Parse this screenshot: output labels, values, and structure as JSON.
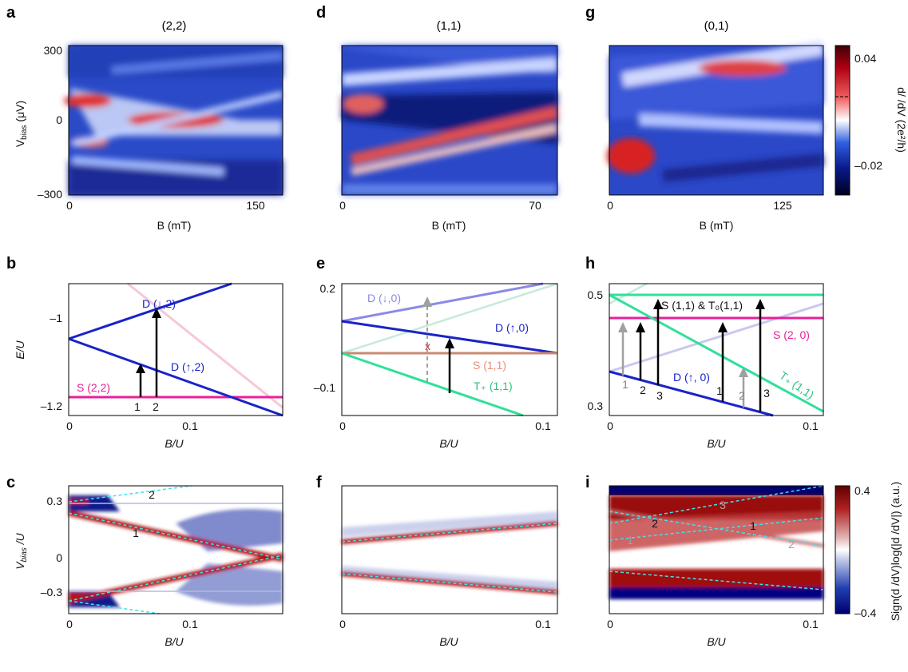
{
  "panel_letters": {
    "a": "a",
    "b": "b",
    "c": "c",
    "d": "d",
    "e": "e",
    "f": "f",
    "g": "g",
    "h": "h",
    "i": "i"
  },
  "titles": {
    "a": "(2,2)",
    "d": "(1,1)",
    "g": "(0,1)"
  },
  "top_row": {
    "ylabel": "V",
    "ylabel_sub": "bias",
    "ylabel_unit": " (μV)",
    "yticks": [
      "300",
      "0",
      "–300"
    ],
    "xlabel": "B (mT)",
    "a_xticks": [
      "0",
      "150"
    ],
    "d_xticks": [
      "0",
      "70"
    ],
    "g_xticks": [
      "0",
      "125"
    ]
  },
  "colorbar_top": {
    "label": "d/ /dV (2e²/h)",
    "ticks": [
      "0.04",
      "–0.02"
    ],
    "colors": [
      "#000020",
      "#0a1a8a",
      "#3060e0",
      "#ffffff",
      "#e04040",
      "#a00010",
      "#400008"
    ]
  },
  "mid_row": {
    "ylabel": "E/U",
    "xlabel": "B/U",
    "b_yticks": [
      "–1",
      "–1.2"
    ],
    "b_xticks": [
      "0",
      "0.1"
    ],
    "e_yticks": [
      "0.2",
      "–0.1"
    ],
    "e_xticks": [
      "0",
      "0.1"
    ],
    "h_yticks": [
      "0.5",
      "0.3"
    ],
    "h_xticks": [
      "0",
      "0.1"
    ]
  },
  "b_labels": {
    "d_down2": "D (↓,2)",
    "d_up2": "D (↑,2)",
    "s22": "S (2,2)",
    "n1": "1",
    "n2": "2"
  },
  "e_labels": {
    "d_down0": "D (↓,0)",
    "d_up0": "D (↑,0)",
    "s11": "S (1,1)",
    "tplus": "T₊ (1,1)",
    "x": "x"
  },
  "h_labels": {
    "s11t0": "S (1,1) & T₀(1,1)",
    "s20": "S (2, 0)",
    "d_up0": "D (↑, 0)",
    "tplus": "T₊ (1,1)",
    "n1a": "1",
    "n2a": "2",
    "n3a": "3",
    "n1b": "1",
    "n2b": "2",
    "n3b": "3"
  },
  "bot_row": {
    "ylabel": "V",
    "ylabel_sub": "bias",
    "ylabel_unit": " /U",
    "yticks": [
      "0.3",
      "0",
      "–0.3"
    ],
    "xlabel": "B/U",
    "c_xticks": [
      "0",
      "0.1"
    ],
    "f_xticks": [
      "0",
      "0.1"
    ],
    "i_xticks": [
      "0",
      "0.1"
    ]
  },
  "c_labels": {
    "n1": "1",
    "n2": "2"
  },
  "i_labels": {
    "n1": "1",
    "n2": "2",
    "n3": "3",
    "n1g": "1",
    "n2g": "2"
  },
  "colorbar_bot": {
    "label": "Sign(d /dV)log(|d /dV|) (a.u.)",
    "ticks": [
      "0.4",
      "–0.4"
    ],
    "colors": [
      "#000070",
      "#2040b0",
      "#c0c8e8",
      "#ffffff",
      "#e0b0b0",
      "#b02020",
      "#600000"
    ]
  },
  "colors": {
    "blue": "#1a23c8",
    "magenta": "#e8209a",
    "green": "#30e09a",
    "salmon": "#e8907a",
    "lightblue": "#8a8ae8",
    "cyan": "#40e0f0",
    "gray": "#a0a0a0"
  }
}
